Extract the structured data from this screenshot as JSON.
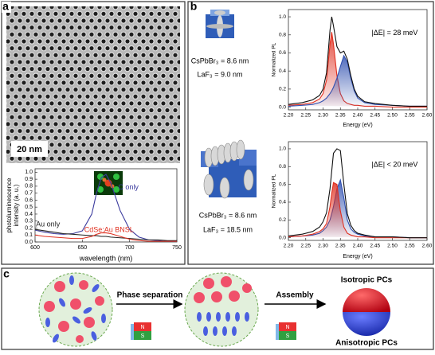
{
  "panel_labels": [
    "a",
    "b",
    "c"
  ],
  "panel_a": {
    "scale_bar": "20 nm"
  },
  "panel_b": {
    "samples": [
      {
        "core": "CsPbBr₃ = 8.6 nm",
        "shell": "LaF₃ = 9.0 nm"
      },
      {
        "core": "CsPbBr₃ = 8.6 nm",
        "shell": "LaF₃ = 18.5 nm"
      }
    ]
  },
  "panel_c": {
    "steps": [
      "Phase separation",
      "Assembly"
    ],
    "results": [
      "Isotropic PCs",
      "Anisotropic PCs"
    ],
    "magnet_poles": [
      "N",
      "S"
    ]
  },
  "chart_data": [
    {
      "type": "line",
      "x_label": "wavelength (nm)",
      "y_label": [
        "photoluminescence",
        "intensity (a. u.)"
      ],
      "x": [
        600,
        610,
        620,
        630,
        640,
        650,
        660,
        665,
        670,
        675,
        680,
        690,
        700,
        710,
        720,
        730,
        740,
        750
      ],
      "series": [
        {
          "name": "C only",
          "color": "#3b3b9e",
          "values": [
            0.17,
            0.14,
            0.12,
            0.11,
            0.12,
            0.16,
            0.4,
            0.7,
            0.92,
            0.97,
            0.85,
            0.45,
            0.18,
            0.07,
            0.03,
            0.02,
            0.01,
            0.01
          ]
        },
        {
          "name": "Au only",
          "color": "#222222",
          "values": [
            0.18,
            0.16,
            0.14,
            0.12,
            0.11,
            0.1,
            0.09,
            0.09,
            0.08,
            0.08,
            0.07,
            0.06,
            0.05,
            0.04,
            0.03,
            0.03,
            0.02,
            0.02
          ]
        },
        {
          "name": "CdSe:Au BNSL",
          "color": "#e03020",
          "values": [
            0.1,
            0.08,
            0.07,
            0.06,
            0.05,
            0.05,
            0.08,
            0.11,
            0.13,
            0.13,
            0.12,
            0.08,
            0.04,
            0.02,
            0.01,
            0.01,
            0.01,
            0.01
          ]
        }
      ],
      "xlim": [
        600,
        750
      ],
      "ylim": [
        0,
        1.05
      ],
      "xticks": [
        600,
        650,
        700,
        750
      ],
      "yticks": [
        {
          "value": 0,
          "label": "0.0"
        },
        0.1,
        0.2,
        0.3,
        0.4,
        0.5,
        0.6,
        0.7,
        0.8,
        0.9,
        {
          "value": 1,
          "label": "1.0"
        }
      ]
    },
    {
      "type": "line",
      "x_label": "Energy (eV)",
      "y_label": "Normalized PL",
      "annotation": "|ΔE| = 28 meV",
      "x": [
        2.2,
        2.24,
        2.27,
        2.29,
        2.3,
        2.31,
        2.32,
        2.325,
        2.33,
        2.34,
        2.35,
        2.36,
        2.37,
        2.38,
        2.39,
        2.4,
        2.42,
        2.45,
        2.5,
        2.55,
        2.6
      ],
      "series": [
        {
          "color": "#e03020",
          "area": true,
          "values": [
            0.02,
            0.03,
            0.05,
            0.09,
            0.15,
            0.3,
            0.7,
            0.83,
            0.7,
            0.35,
            0.15,
            0.07,
            0.04,
            0.03,
            0.02,
            0.02,
            0.01,
            0.01,
            0,
            0,
            0
          ]
        },
        {
          "color": "#3050b0",
          "area": true,
          "values": [
            0.01,
            0.02,
            0.03,
            0.05,
            0.07,
            0.1,
            0.15,
            0.18,
            0.22,
            0.32,
            0.45,
            0.57,
            0.5,
            0.32,
            0.18,
            0.1,
            0.05,
            0.03,
            0.02,
            0.01,
            0.01
          ]
        },
        {
          "color": "#111111",
          "area": false,
          "values": [
            0.03,
            0.05,
            0.08,
            0.13,
            0.2,
            0.38,
            0.85,
            1.0,
            0.9,
            0.67,
            0.6,
            0.62,
            0.53,
            0.35,
            0.2,
            0.12,
            0.06,
            0.04,
            0.02,
            0.01,
            0.01
          ]
        }
      ],
      "xlim": [
        2.2,
        2.6
      ],
      "ylim": [
        -0.03,
        1.08
      ],
      "xticks": [
        {
          "value": 2.2,
          "label": "2.20"
        },
        2.25,
        {
          "value": 2.3,
          "label": "2.30"
        },
        2.35,
        {
          "value": 2.4,
          "label": "2.40"
        },
        2.45,
        {
          "value": 2.5,
          "label": "2.50"
        },
        2.55,
        {
          "value": 2.6,
          "label": "2.60"
        }
      ],
      "yticks": [
        {
          "value": 0,
          "label": "0.0"
        },
        0.2,
        0.4,
        0.6,
        0.8,
        {
          "value": 1,
          "label": "1.0"
        }
      ]
    },
    {
      "type": "line",
      "x_label": "Energy (eV)",
      "y_label": "Normalized PL",
      "annotation": "|ΔE| < 20 meV",
      "x": [
        2.2,
        2.24,
        2.27,
        2.29,
        2.3,
        2.31,
        2.32,
        2.325,
        2.33,
        2.34,
        2.35,
        2.36,
        2.37,
        2.38,
        2.39,
        2.4,
        2.42,
        2.45,
        2.5,
        2.55,
        2.6
      ],
      "series": [
        {
          "color": "#3050b0",
          "area": true,
          "values": [
            0.01,
            0.02,
            0.03,
            0.05,
            0.08,
            0.12,
            0.2,
            0.27,
            0.35,
            0.55,
            0.65,
            0.45,
            0.2,
            0.1,
            0.06,
            0.04,
            0.02,
            0.01,
            0.01,
            0,
            0
          ]
        },
        {
          "color": "#e03020",
          "area": true,
          "values": [
            0.01,
            0.02,
            0.04,
            0.07,
            0.1,
            0.16,
            0.35,
            0.5,
            0.62,
            0.6,
            0.3,
            0.12,
            0.05,
            0.03,
            0.02,
            0.01,
            0.01,
            0,
            0,
            0,
            0
          ]
        },
        {
          "color": "#111111",
          "area": false,
          "values": [
            0.02,
            0.04,
            0.07,
            0.12,
            0.18,
            0.28,
            0.55,
            0.75,
            0.95,
            1.0,
            0.98,
            0.6,
            0.27,
            0.14,
            0.08,
            0.05,
            0.03,
            0.01,
            0.01,
            0,
            0
          ]
        }
      ],
      "xlim": [
        2.2,
        2.6
      ],
      "ylim": [
        -0.03,
        1.08
      ],
      "xticks": [
        {
          "value": 2.2,
          "label": "2.20"
        },
        2.25,
        {
          "value": 2.3,
          "label": "2.30"
        },
        2.35,
        {
          "value": 2.4,
          "label": "2.40"
        },
        2.45,
        {
          "value": 2.5,
          "label": "2.50"
        },
        2.55,
        {
          "value": 2.6,
          "label": "2.60"
        }
      ],
      "yticks": [
        {
          "value": 0,
          "label": "0.0"
        },
        0.2,
        0.4,
        0.6,
        0.8,
        {
          "value": 1,
          "label": "1.0"
        }
      ]
    }
  ]
}
